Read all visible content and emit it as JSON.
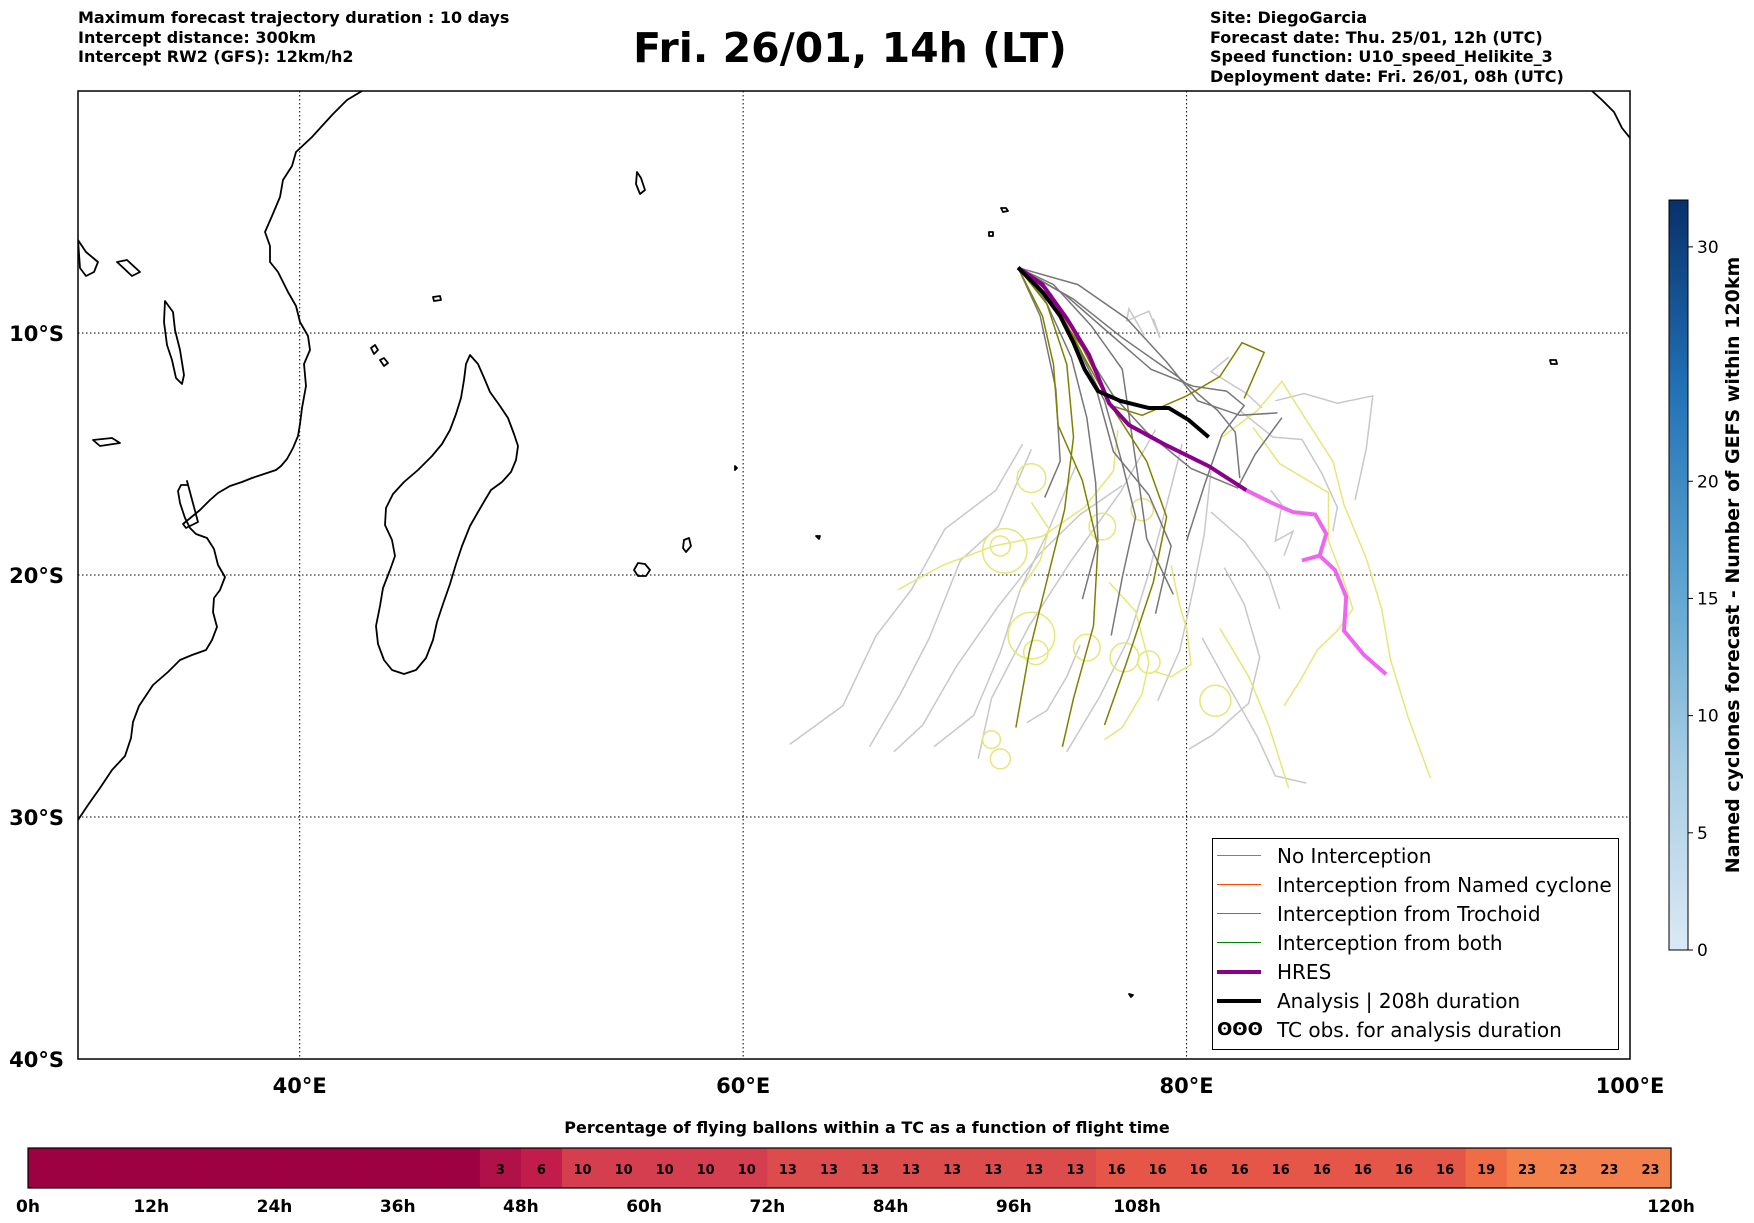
{
  "header_left": [
    "Maximum forecast trajectory duration : 10 days",
    "Intercept distance: 300km",
    "Intercept RW2 (GFS):  12km/h2"
  ],
  "title": "Fri. 26/01, 14h (LT)",
  "header_right": [
    "Site: DiegoGarcia",
    "Forecast date: Thu. 25/01, 12h (UTC)",
    "Speed function: U10_speed_Helikite_3",
    "Deployment date: Fri. 26/01, 08h (UTC)"
  ],
  "map": {
    "lon_range": [
      30,
      100
    ],
    "lat_range": [
      0,
      -40
    ],
    "lon_ticks": [
      {
        "v": 40,
        "label": "40°E"
      },
      {
        "v": 60,
        "label": "60°E"
      },
      {
        "v": 80,
        "label": "80°E"
      },
      {
        "v": 100,
        "label": "100°E"
      }
    ],
    "lat_ticks": [
      {
        "v": -10,
        "label": "10°S"
      },
      {
        "v": -20,
        "label": "20°S"
      },
      {
        "v": -30,
        "label": "30°S"
      },
      {
        "v": -40,
        "label": "40°S"
      }
    ],
    "grid": true,
    "site": {
      "name": "DiegoGarcia",
      "lon": 72.4,
      "lat": -7.3
    }
  },
  "legend": [
    {
      "label": "No Interception",
      "color": "#808080",
      "kind": "thin"
    },
    {
      "label": "Interception from Named cyclone",
      "color": "#ff4500",
      "kind": "thin"
    },
    {
      "label": "Interception from Trochoid",
      "color": "#808000",
      "kind": "thin"
    },
    {
      "label": "Interception from both",
      "color": "#008000",
      "kind": "thin"
    },
    {
      "label": "HRES",
      "color": "#8b008b",
      "kind": "thick"
    },
    {
      "label": "Analysis | 208h duration",
      "color": "#000000",
      "kind": "thick"
    },
    {
      "label": "TC obs. for analysis duration",
      "color": "#000000",
      "kind": "symbol",
      "symbol": "ʘʘʘ"
    }
  ],
  "colorbar_right": {
    "label": "Named cyclones forecast - Number of GEFS within 120km",
    "min": 0,
    "max": 32,
    "ticks": [
      0,
      5,
      10,
      15,
      20,
      30
    ]
  },
  "pct_bar": {
    "title": "Percentage of flying ballons within a TC as a function of flight time",
    "bins_per_step": 3,
    "values": [
      0,
      0,
      0,
      0,
      0,
      0,
      0,
      0,
      0,
      0,
      0,
      3,
      6,
      10,
      10,
      10,
      10,
      10,
      13,
      13,
      13,
      13,
      13,
      13,
      13,
      13,
      16,
      16,
      16,
      16,
      16,
      16,
      16,
      16,
      16,
      19,
      23,
      23,
      23,
      23
    ],
    "time_labels": [
      "0h",
      "12h",
      "24h",
      "36h",
      "48h",
      "60h",
      "72h",
      "84h",
      "96h",
      "108h",
      "120h"
    ]
  },
  "trajectories": {
    "hres": [
      [
        72.4,
        -7.3
      ],
      [
        73.5,
        -8.0
      ],
      [
        74.6,
        -9.4
      ],
      [
        75.6,
        -10.9
      ],
      [
        76.5,
        -12.9
      ],
      [
        77.4,
        -13.8
      ],
      [
        79.0,
        -14.6
      ],
      [
        81.0,
        -15.5
      ],
      [
        82.7,
        -16.5
      ],
      [
        83.8,
        -17.0
      ],
      [
        84.8,
        -17.4
      ],
      [
        85.8,
        -17.5
      ],
      [
        86.3,
        -18.3
      ],
      [
        86.0,
        -19.2
      ],
      [
        85.2,
        -19.4
      ],
      [
        86.0,
        -19.2
      ],
      [
        86.7,
        -19.8
      ],
      [
        87.2,
        -20.9
      ],
      [
        87.1,
        -22.3
      ],
      [
        88.0,
        -23.3
      ],
      [
        89.0,
        -24.1
      ]
    ],
    "analysis": [
      [
        72.4,
        -7.3
      ],
      [
        73.5,
        -8.3
      ],
      [
        74.3,
        -9.3
      ],
      [
        74.9,
        -10.4
      ],
      [
        75.4,
        -11.5
      ],
      [
        76.0,
        -12.4
      ],
      [
        77.0,
        -12.8
      ],
      [
        78.3,
        -13.1
      ],
      [
        79.2,
        -13.1
      ],
      [
        80.1,
        -13.6
      ],
      [
        81.0,
        -14.3
      ]
    ],
    "no_interception": [
      [
        [
          72.4,
          -7.3
        ],
        [
          73.8,
          -8.5
        ],
        [
          75.2,
          -10.8
        ],
        [
          76.3,
          -12.8
        ],
        [
          77.1,
          -15.4
        ],
        [
          77.7,
          -17.6
        ],
        [
          77.1,
          -20.1
        ],
        [
          76.6,
          -22.5
        ]
      ],
      [
        [
          72.4,
          -7.3
        ],
        [
          74.5,
          -8.4
        ],
        [
          76.5,
          -10.0
        ],
        [
          78.4,
          -11.5
        ],
        [
          80.3,
          -12.2
        ],
        [
          81.8,
          -12.4
        ],
        [
          82.6,
          -13.0
        ],
        [
          81.6,
          -14.2
        ],
        [
          80.8,
          -16.3
        ],
        [
          80.0,
          -18.6
        ]
      ],
      [
        [
          72.4,
          -7.3
        ],
        [
          74.9,
          -8.6
        ],
        [
          77.1,
          -10.2
        ],
        [
          79.6,
          -11.8
        ],
        [
          81.4,
          -13.2
        ],
        [
          82.2,
          -14.1
        ],
        [
          82.4,
          -16.0
        ]
      ],
      [
        [
          72.4,
          -7.3
        ],
        [
          74.0,
          -8.0
        ],
        [
          75.7,
          -9.7
        ],
        [
          77.1,
          -11.5
        ],
        [
          77.5,
          -14.0
        ],
        [
          77.9,
          -16.5
        ],
        [
          78.2,
          -18.5
        ],
        [
          79.4,
          -20.8
        ]
      ],
      [
        [
          72.4,
          -7.3
        ],
        [
          73.9,
          -8.4
        ],
        [
          75.2,
          -10.4
        ],
        [
          76.7,
          -12.6
        ],
        [
          78.2,
          -14.1
        ],
        [
          80.2,
          -15.6
        ],
        [
          82.3,
          -16.4
        ],
        [
          83.1,
          -15.0
        ],
        [
          84.3,
          -13.5
        ]
      ],
      [
        [
          72.4,
          -7.3
        ],
        [
          73.6,
          -8.6
        ],
        [
          74.8,
          -11.0
        ],
        [
          75.5,
          -13.5
        ],
        [
          75.9,
          -16.2
        ],
        [
          76.0,
          -18.6
        ],
        [
          75.3,
          -21.0
        ]
      ],
      [
        [
          72.4,
          -7.3
        ],
        [
          75.1,
          -8.0
        ],
        [
          77.3,
          -9.4
        ],
        [
          79.1,
          -11.2
        ],
        [
          80.5,
          -12.8
        ],
        [
          82.4,
          -13.4
        ],
        [
          84.1,
          -13.3
        ]
      ],
      [
        [
          72.4,
          -7.3
        ],
        [
          74.2,
          -8.9
        ],
        [
          75.8,
          -11.9
        ],
        [
          76.7,
          -14.9
        ],
        [
          78.3,
          -16.7
        ],
        [
          79.3,
          -18.8
        ],
        [
          78.6,
          -21.6
        ]
      ],
      [
        [
          72.4,
          -7.3
        ],
        [
          73.4,
          -9.3
        ],
        [
          74.1,
          -12.3
        ],
        [
          74.3,
          -15.3
        ],
        [
          73.6,
          -16.8
        ]
      ]
    ],
    "trochoid": [
      [
        [
          72.4,
          -7.3
        ],
        [
          73.7,
          -8.8
        ],
        [
          74.6,
          -11.3
        ],
        [
          74.9,
          -14.3
        ],
        [
          74.5,
          -17.3
        ],
        [
          73.6,
          -20.6
        ],
        [
          72.9,
          -23.2
        ],
        [
          72.3,
          -26.3
        ]
      ],
      [
        [
          72.4,
          -7.3
        ],
        [
          73.5,
          -9.3
        ],
        [
          74.0,
          -11.3
        ],
        [
          74.2,
          -13.8
        ],
        [
          75.3,
          -16.1
        ],
        [
          76.0,
          -18.8
        ],
        [
          75.8,
          -22.1
        ],
        [
          74.9,
          -25.1
        ],
        [
          74.4,
          -27.1
        ]
      ],
      [
        [
          72.4,
          -7.3
        ],
        [
          74.1,
          -8.8
        ],
        [
          75.5,
          -11.2
        ],
        [
          76.6,
          -13.0
        ],
        [
          78.0,
          -13.4
        ],
        [
          80.0,
          -12.6
        ],
        [
          81.5,
          -11.8
        ],
        [
          82.5,
          -10.4
        ],
        [
          83.5,
          -10.8
        ],
        [
          82.6,
          -12.7
        ]
      ],
      [
        [
          72.4,
          -7.3
        ],
        [
          73.8,
          -8.7
        ],
        [
          75.3,
          -10.6
        ],
        [
          76.8,
          -13.3
        ],
        [
          78.2,
          -15.3
        ],
        [
          79.1,
          -17.6
        ],
        [
          78.5,
          -20.3
        ],
        [
          77.3,
          -23.6
        ],
        [
          76.3,
          -26.2
        ]
      ]
    ],
    "light_gray": [
      [
        [
          72.6,
          -14.6
        ],
        [
          71.4,
          -16.5
        ],
        [
          69.1,
          -18.1
        ],
        [
          67.6,
          -20.6
        ],
        [
          66.0,
          -22.5
        ],
        [
          64.5,
          -25.4
        ],
        [
          62.1,
          -27.0
        ]
      ],
      [
        [
          73.0,
          -14.8
        ],
        [
          71.5,
          -18.0
        ],
        [
          69.8,
          -19.4
        ],
        [
          68.4,
          -22.6
        ],
        [
          67.1,
          -24.9
        ],
        [
          65.7,
          -27.1
        ]
      ],
      [
        [
          75.0,
          -15.5
        ],
        [
          73.7,
          -18.3
        ],
        [
          72.5,
          -20.6
        ],
        [
          71.6,
          -23.2
        ],
        [
          70.4,
          -25.8
        ],
        [
          68.6,
          -27.1
        ]
      ],
      [
        [
          77.1,
          -16.3
        ],
        [
          75.2,
          -17.5
        ],
        [
          73.4,
          -19.1
        ],
        [
          71.5,
          -21.3
        ],
        [
          69.6,
          -23.8
        ],
        [
          68.1,
          -26.2
        ],
        [
          66.8,
          -27.3
        ]
      ],
      [
        [
          78.6,
          -14.0
        ],
        [
          77.0,
          -16.6
        ],
        [
          74.8,
          -19.4
        ],
        [
          72.9,
          -22.1
        ],
        [
          71.2,
          -25.1
        ],
        [
          70.6,
          -27.6
        ]
      ],
      [
        [
          79.8,
          -14.6
        ],
        [
          79.1,
          -17.1
        ],
        [
          78.3,
          -19.9
        ],
        [
          77.4,
          -22.6
        ],
        [
          76.1,
          -25.0
        ],
        [
          74.6,
          -27.3
        ]
      ],
      [
        [
          81.1,
          -15.7
        ],
        [
          80.8,
          -18.3
        ],
        [
          80.3,
          -20.6
        ],
        [
          79.7,
          -23.1
        ],
        [
          78.7,
          -25.2
        ]
      ],
      [
        [
          82.4,
          -13.2
        ],
        [
          83.9,
          -14.3
        ],
        [
          85.2,
          -14.4
        ],
        [
          86.1,
          -15.8
        ],
        [
          86.8,
          -17.2
        ],
        [
          86.6,
          -18.2
        ]
      ],
      [
        [
          84.0,
          -12.8
        ],
        [
          85.3,
          -12.5
        ],
        [
          86.8,
          -12.9
        ],
        [
          88.4,
          -12.6
        ],
        [
          88.1,
          -14.8
        ],
        [
          87.6,
          -16.9
        ]
      ],
      [
        [
          81.7,
          -19.7
        ],
        [
          82.6,
          -21.2
        ],
        [
          83.3,
          -23.4
        ],
        [
          82.8,
          -25.3
        ],
        [
          81.2,
          -26.6
        ],
        [
          80.1,
          -27.2
        ]
      ],
      [
        [
          80.7,
          -22.6
        ],
        [
          81.9,
          -24.6
        ],
        [
          83.2,
          -26.7
        ],
        [
          84.0,
          -28.3
        ],
        [
          85.4,
          -28.6
        ]
      ],
      [
        [
          81.9,
          -11.0
        ],
        [
          81.1,
          -11.6
        ],
        [
          82.7,
          -12.5
        ],
        [
          83.4,
          -13.1
        ]
      ],
      [
        [
          78.1,
          -10.1
        ],
        [
          77.4,
          -9.0
        ],
        [
          77.3,
          -9.5
        ],
        [
          78.3,
          -9.1
        ],
        [
          78.8,
          -10.2
        ],
        [
          78.5,
          -9.4
        ]
      ],
      [
        [
          83.8,
          -16.5
        ],
        [
          84.3,
          -17.1
        ],
        [
          84.0,
          -18.6
        ],
        [
          84.8,
          -18.2
        ],
        [
          84.4,
          -19.2
        ]
      ],
      [
        [
          81.1,
          -17.4
        ],
        [
          82.6,
          -18.6
        ],
        [
          83.7,
          -20.0
        ],
        [
          84.2,
          -21.4
        ]
      ],
      [
        [
          75.2,
          -22.9
        ],
        [
          74.6,
          -24.2
        ],
        [
          73.7,
          -25.6
        ],
        [
          72.8,
          -26.1
        ]
      ]
    ],
    "yellow": [
      [
        [
          76.9,
          -14.0
        ],
        [
          76.7,
          -15.7
        ],
        [
          75.4,
          -17.2
        ],
        [
          73.5,
          -18.4
        ],
        [
          71.3,
          -18.8
        ],
        [
          69.0,
          -19.6
        ],
        [
          67.0,
          -20.6
        ]
      ],
      [
        [
          81.6,
          -14.3
        ],
        [
          83.2,
          -13.2
        ],
        [
          84.3,
          -12.0
        ],
        [
          85.4,
          -13.6
        ],
        [
          86.6,
          -15.3
        ],
        [
          87.1,
          -17.1
        ],
        [
          88.1,
          -19.3
        ],
        [
          88.8,
          -21.4
        ],
        [
          89.2,
          -23.5
        ],
        [
          90.0,
          -25.9
        ],
        [
          91.0,
          -28.4
        ]
      ],
      [
        [
          83.0,
          -13.9
        ],
        [
          84.2,
          -15.4
        ],
        [
          86.4,
          -16.6
        ],
        [
          86.4,
          -18.6
        ],
        [
          87.0,
          -20.0
        ],
        [
          87.5,
          -21.4
        ],
        [
          86.8,
          -22.3
        ],
        [
          85.9,
          -23.1
        ],
        [
          85.1,
          -24.4
        ],
        [
          84.4,
          -25.4
        ]
      ],
      [
        [
          79.3,
          -19.6
        ],
        [
          79.7,
          -21.3
        ],
        [
          80.0,
          -22.2
        ],
        [
          80.2,
          -23.7
        ],
        [
          79.3,
          -24.2
        ],
        [
          78.6,
          -24.0
        ]
      ],
      [
        [
          76.5,
          -20.3
        ],
        [
          77.7,
          -21.5
        ],
        [
          78.3,
          -23.6
        ],
        [
          78.0,
          -24.9
        ],
        [
          77.1,
          -26.3
        ],
        [
          76.3,
          -26.8
        ]
      ],
      [
        [
          81.5,
          -22.2
        ],
        [
          82.8,
          -24.2
        ],
        [
          83.7,
          -26.2
        ],
        [
          84.6,
          -28.8
        ]
      ],
      [
        [
          73.0,
          -17.0
        ],
        [
          73.8,
          -18.1
        ],
        [
          73.4,
          -19.4
        ],
        [
          72.5,
          -20.6
        ]
      ]
    ],
    "yellow_loops": [
      [
        71.8,
        -19.0,
        2.0
      ],
      [
        73.0,
        -16.0,
        1.3
      ],
      [
        71.6,
        -18.8,
        0.9
      ],
      [
        76.2,
        -18.0,
        1.2
      ],
      [
        73.0,
        -22.5,
        2.1
      ],
      [
        73.2,
        -23.2,
        1.1
      ],
      [
        77.2,
        -23.4,
        1.3
      ],
      [
        78.3,
        -23.6,
        1.0
      ],
      [
        81.3,
        -25.2,
        1.4
      ],
      [
        75.5,
        -23.0,
        1.2
      ],
      [
        71.2,
        -26.8,
        0.8
      ],
      [
        71.6,
        -27.6,
        0.9
      ],
      [
        78.0,
        -17.3,
        1.0
      ]
    ]
  }
}
